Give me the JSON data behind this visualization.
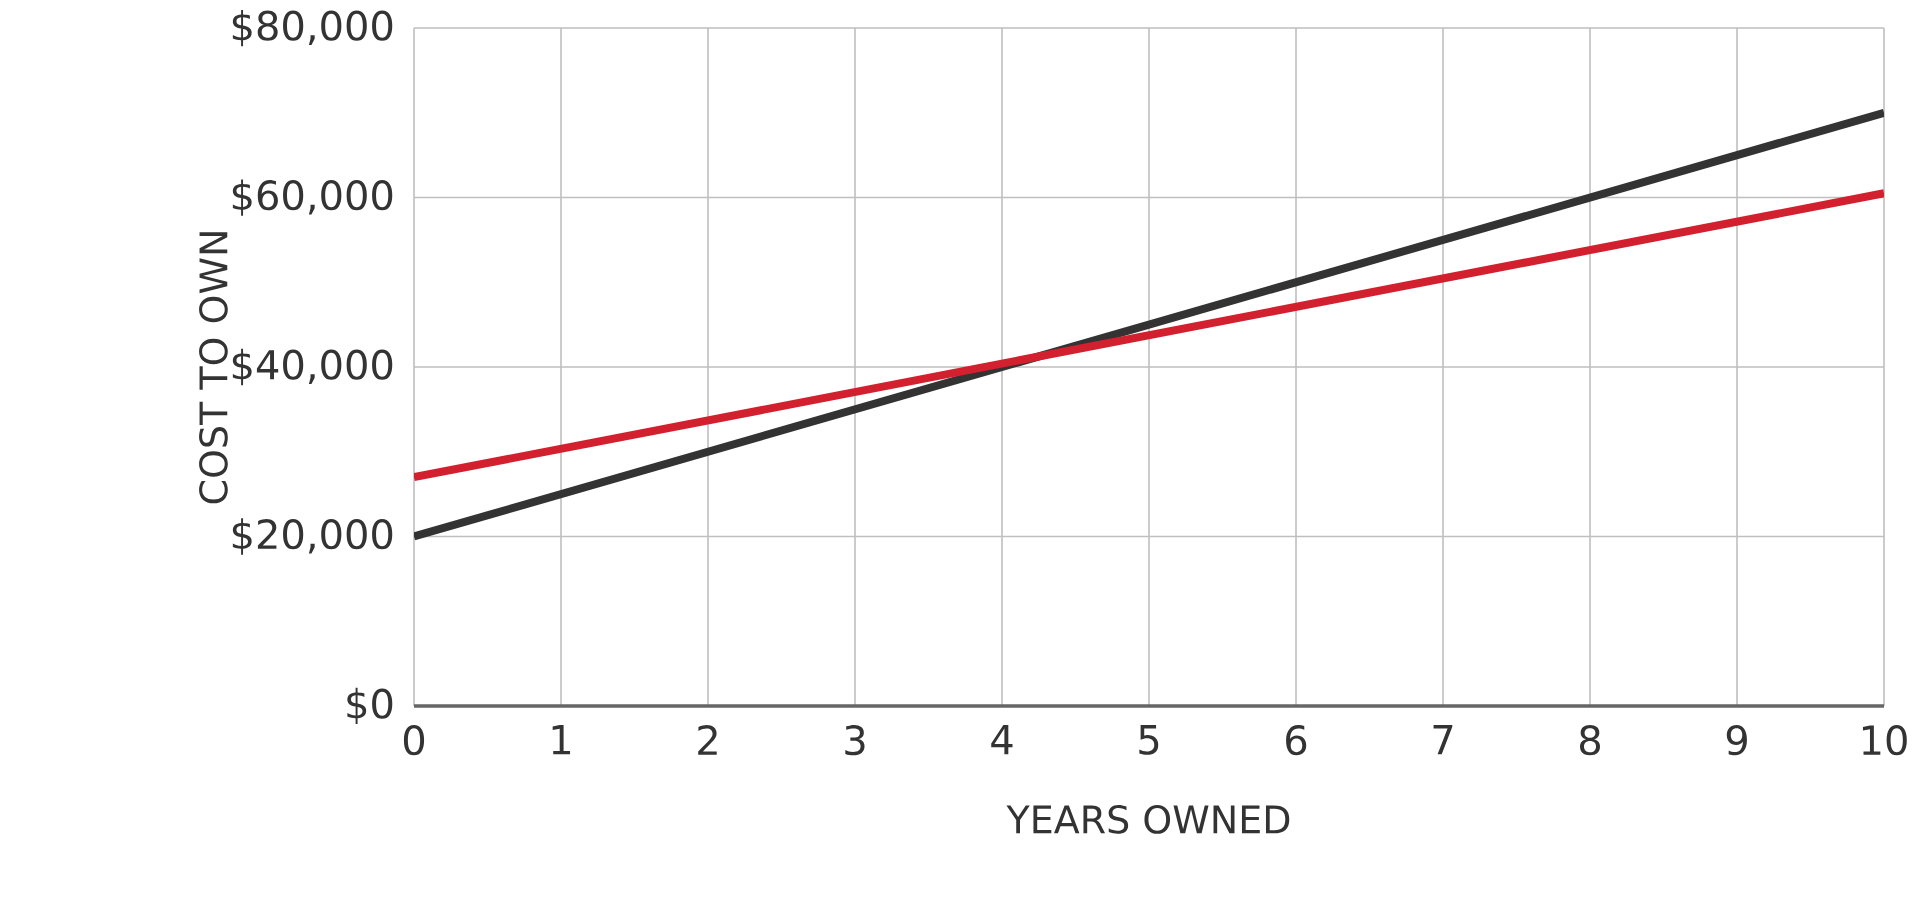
{
  "chart_data": {
    "type": "line",
    "xlabel": "YEARS OWNED",
    "ylabel": "COST TO OWN",
    "x": [
      0,
      10
    ],
    "series": [
      {
        "color": "#333333",
        "values": [
          20000,
          70000
        ]
      },
      {
        "color": "#d2202f",
        "values": [
          27000,
          60500
        ]
      }
    ],
    "xlim": [
      0,
      10
    ],
    "ylim": [
      0,
      80000
    ],
    "xticks": [
      0,
      1,
      2,
      3,
      4,
      5,
      6,
      7,
      8,
      9,
      10
    ],
    "yticks": [
      {
        "value": 0,
        "label": "$0"
      },
      {
        "value": 20000,
        "label": "$20,000"
      },
      {
        "value": 40000,
        "label": "$40,000"
      },
      {
        "value": 60000,
        "label": "$60,000"
      },
      {
        "value": 80000,
        "label": "$80,000"
      }
    ],
    "grid": true
  }
}
